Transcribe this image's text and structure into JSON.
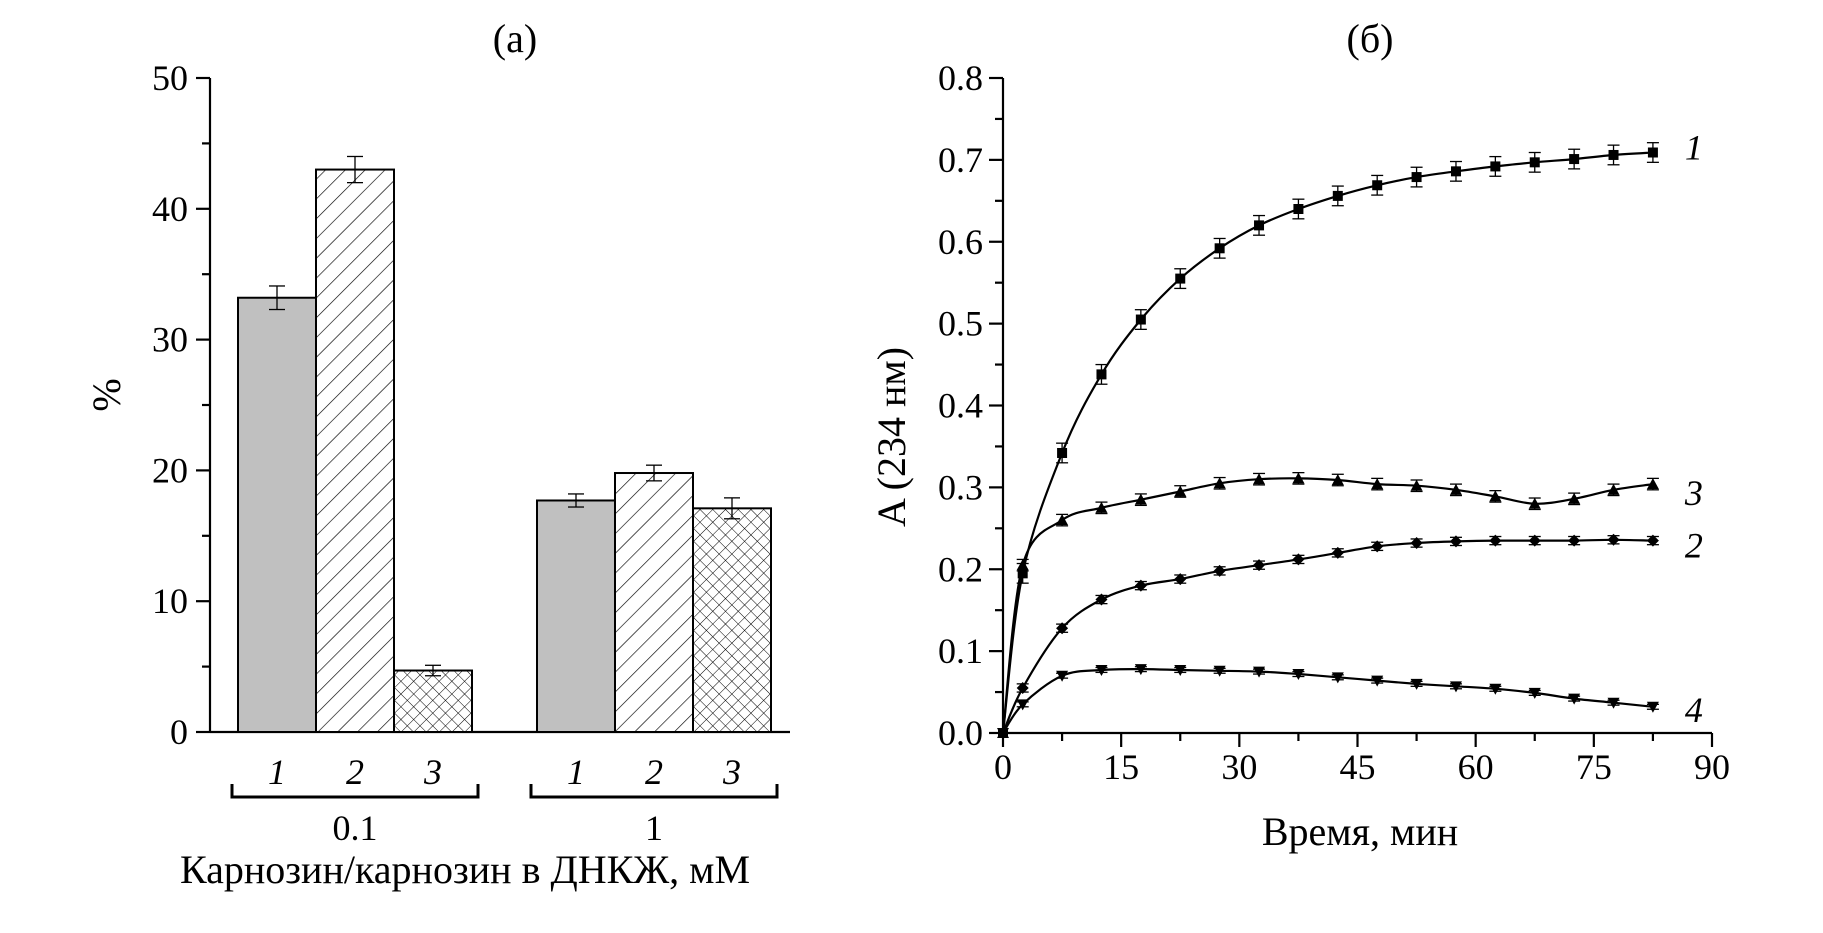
{
  "chart_data": [
    {
      "type": "bar",
      "title": "(а)",
      "ylabel": "%",
      "xlabel": "Карнозин/карнозин в ДНКЖ, мМ",
      "ylim": [
        0,
        50
      ],
      "yticks": [
        "0",
        "10",
        "20",
        "30",
        "40",
        "50"
      ],
      "groups": [
        {
          "label": "0.1",
          "bars": [
            {
              "label": "1",
              "value": 33.2,
              "error": 0.9,
              "fill": "gray"
            },
            {
              "label": "2",
              "value": 43.0,
              "error": 1.0,
              "fill": "hatch"
            },
            {
              "label": "3",
              "value": 4.7,
              "error": 0.4,
              "fill": "crosshatch"
            }
          ]
        },
        {
          "label": "1",
          "bars": [
            {
              "label": "1",
              "value": 17.7,
              "error": 0.5,
              "fill": "gray"
            },
            {
              "label": "2",
              "value": 19.8,
              "error": 0.6,
              "fill": "hatch"
            },
            {
              "label": "3",
              "value": 17.1,
              "error": 0.8,
              "fill": "crosshatch"
            }
          ]
        }
      ],
      "colors": {
        "gray": "#c0c0c0",
        "line": "#000000"
      }
    },
    {
      "type": "line",
      "title": "(б)",
      "xlabel": "Время, мин",
      "ylabel": "A (234 нм)",
      "xlim": [
        0,
        90
      ],
      "ylim": [
        0,
        0.8
      ],
      "xticks": [
        "0",
        "15",
        "30",
        "45",
        "60",
        "75",
        "90"
      ],
      "yticks": [
        "0.0",
        "0.1",
        "0.2",
        "0.3",
        "0.4",
        "0.5",
        "0.6",
        "0.7",
        "0.8"
      ],
      "x": [
        0,
        2.5,
        7.5,
        12.5,
        17.5,
        22.5,
        27.5,
        32.5,
        37.5,
        42.5,
        47.5,
        52.5,
        57.5,
        62.5,
        67.5,
        72.5,
        77.5,
        82.5
      ],
      "series": [
        {
          "name": "1",
          "marker": "square",
          "values": [
            0,
            0.195,
            0.342,
            0.438,
            0.505,
            0.555,
            0.592,
            0.62,
            0.64,
            0.656,
            0.669,
            0.679,
            0.686,
            0.692,
            0.697,
            0.701,
            0.706,
            0.709
          ],
          "error": 0.012
        },
        {
          "name": "2",
          "marker": "diamond",
          "values": [
            0,
            0.055,
            0.128,
            0.163,
            0.18,
            0.188,
            0.198,
            0.205,
            0.212,
            0.22,
            0.228,
            0.232,
            0.234,
            0.235,
            0.235,
            0.235,
            0.236,
            0.235
          ],
          "error": 0.005
        },
        {
          "name": "3",
          "marker": "triangle-up",
          "values": [
            0,
            0.205,
            0.26,
            0.275,
            0.285,
            0.295,
            0.305,
            0.31,
            0.311,
            0.309,
            0.304,
            0.302,
            0.297,
            0.289,
            0.28,
            0.286,
            0.297,
            0.304
          ],
          "error": 0.007
        },
        {
          "name": "4",
          "marker": "triangle-down",
          "values": [
            0,
            0.035,
            0.07,
            0.077,
            0.078,
            0.077,
            0.076,
            0.075,
            0.072,
            0.068,
            0.064,
            0.06,
            0.057,
            0.054,
            0.049,
            0.042,
            0.037,
            0.032
          ],
          "error": 0.003
        }
      ]
    }
  ]
}
